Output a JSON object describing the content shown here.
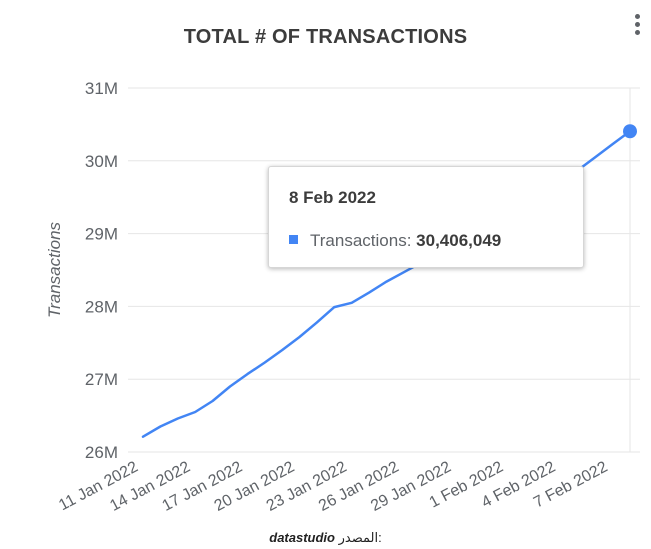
{
  "chart_data": {
    "type": "line",
    "title": "TOTAL # OF TRANSACTIONS",
    "ylabel": "Transactions",
    "ylim": [
      26000000,
      31000000
    ],
    "yticks": [
      "26M",
      "27M",
      "28M",
      "29M",
      "30M",
      "31M"
    ],
    "ytick_values": [
      26000000,
      27000000,
      28000000,
      29000000,
      30000000,
      31000000
    ],
    "xticks": [
      "11 Jan 2022",
      "14 Jan 2022",
      "17 Jan 2022",
      "20 Jan 2022",
      "23 Jan 2022",
      "26 Jan 2022",
      "29 Jan 2022",
      "1 Feb 2022",
      "4 Feb 2022",
      "7 Feb 2022"
    ],
    "grid": true,
    "color": "#4285f4",
    "series": [
      {
        "x": [
          "11 Jan 2022",
          "12 Jan 2022",
          "13 Jan 2022",
          "14 Jan 2022",
          "15 Jan 2022",
          "16 Jan 2022",
          "17 Jan 2022",
          "18 Jan 2022",
          "19 Jan 2022",
          "20 Jan 2022",
          "21 Jan 2022",
          "22 Jan 2022",
          "23 Jan 2022",
          "24 Jan 2022",
          "25 Jan 2022",
          "26 Jan 2022",
          "27 Jan 2022",
          "28 Jan 2022",
          "29 Jan 2022",
          "30 Jan 2022",
          "31 Jan 2022",
          "1 Feb 2022",
          "2 Feb 2022",
          "3 Feb 2022",
          "4 Feb 2022",
          "5 Feb 2022",
          "6 Feb 2022",
          "7 Feb 2022",
          "8 Feb 2022"
        ],
        "values": [
          26210000,
          26350000,
          26460000,
          26550000,
          26700000,
          26900000,
          27070000,
          27230000,
          27400000,
          27580000,
          27780000,
          27990000,
          28050000,
          28190000,
          28340000,
          28470000,
          28600000,
          28740000,
          28880000,
          29010000,
          29150000,
          29290000,
          29430000,
          29560000,
          29700000,
          29870000,
          30050000,
          30230000,
          30406049
        ]
      }
    ]
  },
  "tooltip": {
    "date": "8 Feb 2022",
    "series_label": "Transactions:",
    "value": "30,406,049"
  },
  "source": {
    "label": "المصدر:",
    "value": "datastudio"
  },
  "menu": {
    "icon": "more-vert-icon"
  }
}
